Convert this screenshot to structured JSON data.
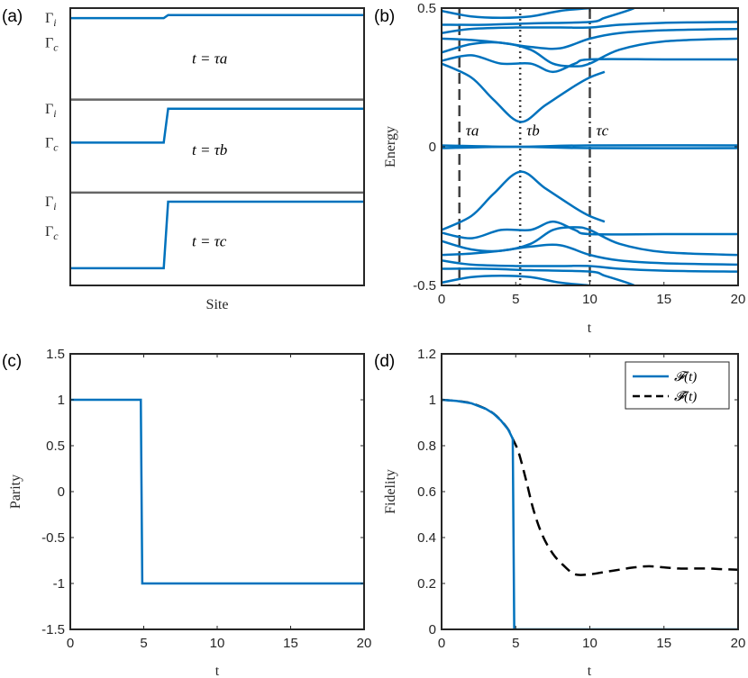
{
  "colors": {
    "blue": "#0072BD",
    "gray": "#666666",
    "black": "#000000"
  },
  "panels": [
    {
      "id": "a",
      "type": "line",
      "label": "(a)",
      "title": "",
      "xlabel": "Site",
      "ylabel": "",
      "ytick_labels": [
        "Γi",
        "Γc",
        "Γi",
        "Γc",
        "Γi",
        "Γc"
      ],
      "xticks": false,
      "series": [
        {
          "name": "profile-a",
          "color": "blue",
          "points": [
            [
              0,
              0.964
            ],
            [
              0.318,
              0.964
            ],
            [
              0.333,
              0.975
            ],
            [
              1,
              0.975
            ]
          ]
        },
        {
          "name": "divider-1",
          "color": "gray",
          "points": [
            [
              0,
              0.67
            ],
            [
              1,
              0.67
            ]
          ]
        },
        {
          "name": "profile-b",
          "color": "blue",
          "points": [
            [
              0,
              0.515
            ],
            [
              0.318,
              0.515
            ],
            [
              0.333,
              0.637
            ],
            [
              1,
              0.637
            ]
          ]
        },
        {
          "name": "divider-2",
          "color": "gray",
          "points": [
            [
              0,
              0.335
            ],
            [
              1,
              0.335
            ]
          ]
        },
        {
          "name": "profile-c",
          "color": "blue",
          "points": [
            [
              0,
              0.062
            ],
            [
              0.318,
              0.062
            ],
            [
              0.333,
              0.302
            ],
            [
              1,
              0.302
            ]
          ]
        }
      ],
      "annotations": [
        {
          "text": "t = τa",
          "x": 0.5,
          "y": 0.82
        },
        {
          "text": "t = τb",
          "x": 0.5,
          "y": 0.49
        },
        {
          "text": "t = τc",
          "x": 0.5,
          "y": 0.16
        }
      ],
      "xlim": [
        0,
        1
      ],
      "ylim": [
        0,
        1
      ]
    },
    {
      "id": "b",
      "type": "line",
      "label": "(b)",
      "title": "",
      "xlabel": "t",
      "ylabel": "Energy",
      "xlim": [
        0,
        20
      ],
      "ylim": [
        -0.5,
        0.5
      ],
      "xticks": [
        0,
        5,
        10,
        15,
        20
      ],
      "xtick_labels": [
        "0",
        "5",
        "10",
        "15",
        "20"
      ],
      "yticks": [
        -0.5,
        0,
        0.5
      ],
      "ytick_labels": [
        "-0.5",
        "0",
        "0.5"
      ],
      "vlines": [
        {
          "x": 1.2,
          "style": "dashed",
          "label": "τa"
        },
        {
          "x": 5.3,
          "style": "dotted",
          "label": "τb"
        },
        {
          "x": 10.0,
          "style": "dashdot",
          "label": "τc"
        }
      ],
      "series": [
        {
          "name": "E-high-1",
          "points": [
            [
              0,
              0.49
            ],
            [
              2,
              0.47
            ],
            [
              4,
              0.465
            ],
            [
              6,
              0.47
            ],
            [
              8,
              0.49
            ],
            [
              10,
              0.5
            ]
          ]
        },
        {
          "name": "E-high-2",
          "points": [
            [
              0,
              0.44
            ],
            [
              3,
              0.44
            ],
            [
              6,
              0.445
            ],
            [
              10,
              0.45
            ],
            [
              11,
              0.465
            ],
            [
              12.5,
              0.49
            ],
            [
              13,
              0.5
            ]
          ]
        },
        {
          "name": "E-high-3",
          "points": [
            [
              0,
              0.41
            ],
            [
              2,
              0.425
            ],
            [
              5,
              0.43
            ],
            [
              8,
              0.43
            ],
            [
              10,
              0.43
            ],
            [
              12,
              0.44
            ],
            [
              15,
              0.447
            ],
            [
              20,
              0.45
            ]
          ]
        },
        {
          "name": "E-high-4",
          "points": [
            [
              0,
              0.39
            ],
            [
              2,
              0.385
            ],
            [
              4,
              0.375
            ],
            [
              6,
              0.36
            ],
            [
              8,
              0.355
            ],
            [
              10,
              0.39
            ],
            [
              12,
              0.41
            ],
            [
              15,
              0.42
            ],
            [
              20,
              0.425
            ]
          ]
        },
        {
          "name": "E-high-5",
          "points": [
            [
              0,
              0.34
            ],
            [
              2,
              0.37
            ],
            [
              4,
              0.375
            ],
            [
              6,
              0.35
            ],
            [
              7.5,
              0.3
            ],
            [
              9,
              0.29
            ],
            [
              10,
              0.3
            ],
            [
              12,
              0.35
            ],
            [
              15,
              0.38
            ],
            [
              20,
              0.39
            ]
          ]
        },
        {
          "name": "E-high-6",
          "points": [
            [
              0,
              0.31
            ],
            [
              2,
              0.33
            ],
            [
              4,
              0.3
            ],
            [
              6,
              0.3
            ],
            [
              7.5,
              0.27
            ],
            [
              9,
              0.3
            ],
            [
              10,
              0.315
            ],
            [
              15,
              0.315
            ],
            [
              20,
              0.315
            ]
          ]
        },
        {
          "name": "E-low-gap",
          "points": [
            [
              0,
              0.3
            ],
            [
              2,
              0.25
            ],
            [
              3.5,
              0.17
            ],
            [
              5.3,
              0.09
            ],
            [
              7,
              0.15
            ],
            [
              9,
              0.22
            ],
            [
              10,
              0.25
            ],
            [
              11,
              0.27
            ]
          ]
        },
        {
          "name": "E-zero-1",
          "points": [
            [
              0,
              0.005
            ],
            [
              5,
              0.0
            ],
            [
              10,
              0.005
            ],
            [
              20,
              0.005
            ]
          ]
        },
        {
          "name": "E-zero-2",
          "points": [
            [
              0,
              -0.005
            ],
            [
              5,
              0.0
            ],
            [
              10,
              -0.005
            ],
            [
              20,
              -0.005
            ]
          ]
        },
        {
          "name": "E-neg-gap",
          "points": [
            [
              0,
              -0.3
            ],
            [
              2,
              -0.25
            ],
            [
              3.5,
              -0.17
            ],
            [
              5.3,
              -0.09
            ],
            [
              7,
              -0.15
            ],
            [
              9,
              -0.22
            ],
            [
              10,
              -0.25
            ],
            [
              11,
              -0.27
            ]
          ]
        },
        {
          "name": "E-neg-6",
          "points": [
            [
              0,
              -0.31
            ],
            [
              2,
              -0.33
            ],
            [
              4,
              -0.3
            ],
            [
              6,
              -0.3
            ],
            [
              7.5,
              -0.27
            ],
            [
              9,
              -0.3
            ],
            [
              10,
              -0.315
            ],
            [
              15,
              -0.315
            ],
            [
              20,
              -0.315
            ]
          ]
        },
        {
          "name": "E-neg-5",
          "points": [
            [
              0,
              -0.34
            ],
            [
              2,
              -0.37
            ],
            [
              4,
              -0.375
            ],
            [
              6,
              -0.35
            ],
            [
              7.5,
              -0.3
            ],
            [
              9,
              -0.29
            ],
            [
              10,
              -0.3
            ],
            [
              12,
              -0.35
            ],
            [
              15,
              -0.38
            ],
            [
              20,
              -0.39
            ]
          ]
        },
        {
          "name": "E-neg-4",
          "points": [
            [
              0,
              -0.39
            ],
            [
              2,
              -0.385
            ],
            [
              4,
              -0.375
            ],
            [
              6,
              -0.36
            ],
            [
              8,
              -0.355
            ],
            [
              10,
              -0.39
            ],
            [
              12,
              -0.41
            ],
            [
              15,
              -0.42
            ],
            [
              20,
              -0.425
            ]
          ]
        },
        {
          "name": "E-neg-3",
          "points": [
            [
              0,
              -0.41
            ],
            [
              2,
              -0.425
            ],
            [
              5,
              -0.43
            ],
            [
              8,
              -0.43
            ],
            [
              10,
              -0.43
            ],
            [
              12,
              -0.44
            ],
            [
              15,
              -0.447
            ],
            [
              20,
              -0.45
            ]
          ]
        },
        {
          "name": "E-neg-2",
          "points": [
            [
              0,
              -0.44
            ],
            [
              3,
              -0.44
            ],
            [
              6,
              -0.445
            ],
            [
              10,
              -0.45
            ],
            [
              11,
              -0.465
            ],
            [
              12.5,
              -0.49
            ],
            [
              13,
              -0.5
            ]
          ]
        },
        {
          "name": "E-neg-1",
          "points": [
            [
              0,
              -0.49
            ],
            [
              2,
              -0.47
            ],
            [
              4,
              -0.465
            ],
            [
              6,
              -0.47
            ],
            [
              8,
              -0.49
            ],
            [
              10,
              -0.5
            ]
          ]
        }
      ]
    },
    {
      "id": "c",
      "type": "line",
      "label": "(c)",
      "title": "",
      "xlabel": "t",
      "ylabel": "Parity",
      "xlim": [
        0,
        20
      ],
      "ylim": [
        -1.5,
        1.5
      ],
      "xticks": [
        0,
        5,
        10,
        15,
        20
      ],
      "xtick_labels": [
        "0",
        "5",
        "10",
        "15",
        "20"
      ],
      "yticks": [
        -1.5,
        -1,
        -0.5,
        0,
        0.5,
        1,
        1.5
      ],
      "ytick_labels": [
        "-1.5",
        "-1",
        "-0.5",
        "0",
        "0.5",
        "1",
        "1.5"
      ],
      "series": [
        {
          "name": "parity",
          "color": "blue",
          "points": [
            [
              0,
              1
            ],
            [
              4.8,
              1
            ],
            [
              4.9,
              -1
            ],
            [
              20,
              -1
            ]
          ]
        }
      ]
    },
    {
      "id": "d",
      "type": "line",
      "label": "(d)",
      "title": "",
      "xlabel": "t",
      "ylabel": "Fidelity",
      "xlim": [
        0,
        20
      ],
      "ylim": [
        0,
        1.2
      ],
      "xticks": [
        0,
        5,
        10,
        15,
        20
      ],
      "xtick_labels": [
        "0",
        "5",
        "10",
        "15",
        "20"
      ],
      "yticks": [
        0,
        0.2,
        0.4,
        0.6,
        0.8,
        1,
        1.2
      ],
      "ytick_labels": [
        "0",
        "0.2",
        "0.4",
        "0.6",
        "0.8",
        "1",
        "1.2"
      ],
      "legend": {
        "placement": "top-right",
        "entries": [
          "𝓕(t)",
          "𝓕̄(t)"
        ]
      },
      "series": [
        {
          "name": "F(t)",
          "color": "blue",
          "style": "solid",
          "points": [
            [
              0,
              1
            ],
            [
              1,
              0.995
            ],
            [
              2,
              0.985
            ],
            [
              3,
              0.96
            ],
            [
              3.5,
              0.94
            ],
            [
              4,
              0.91
            ],
            [
              4.5,
              0.87
            ],
            [
              4.8,
              0.83
            ],
            [
              4.9,
              0
            ],
            [
              20,
              0
            ]
          ]
        },
        {
          "name": "Fbar(t)",
          "color": "black",
          "style": "dashed",
          "points": [
            [
              0,
              1
            ],
            [
              1,
              0.995
            ],
            [
              2,
              0.985
            ],
            [
              3,
              0.96
            ],
            [
              3.5,
              0.94
            ],
            [
              4,
              0.91
            ],
            [
              4.5,
              0.87
            ],
            [
              4.8,
              0.83
            ],
            [
              5.2,
              0.77
            ],
            [
              5.7,
              0.65
            ],
            [
              6.2,
              0.52
            ],
            [
              6.8,
              0.41
            ],
            [
              7.5,
              0.33
            ],
            [
              8.2,
              0.28
            ],
            [
              9,
              0.24
            ],
            [
              10,
              0.24
            ],
            [
              11,
              0.25
            ],
            [
              12,
              0.26
            ],
            [
              13,
              0.27
            ],
            [
              14,
              0.275
            ],
            [
              15,
              0.27
            ],
            [
              16,
              0.265
            ],
            [
              17,
              0.265
            ],
            [
              18,
              0.265
            ],
            [
              19,
              0.262
            ],
            [
              20,
              0.26
            ]
          ]
        }
      ]
    }
  ]
}
